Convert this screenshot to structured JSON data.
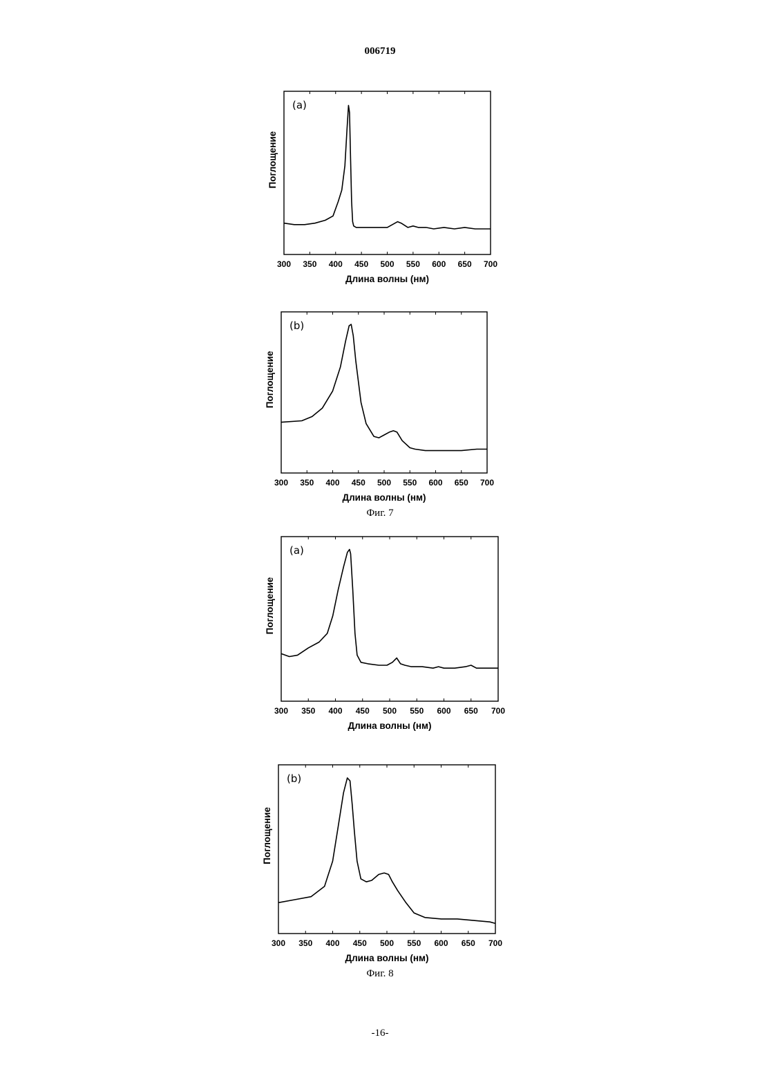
{
  "header": {
    "doc_number": "006719"
  },
  "footer": {
    "page_number": "-16-"
  },
  "figures": [
    {
      "caption": "Фиг. 7"
    },
    {
      "caption": "Фиг. 8"
    }
  ],
  "chart_data": [
    {
      "type": "line",
      "figure": "Фиг. 7",
      "panel_label": "(a)",
      "xlabel": "Длина волны (нм)",
      "ylabel": "Поглощение",
      "xlim": [
        300,
        700
      ],
      "ylim": [
        0,
        1
      ],
      "xticks": [
        "300",
        "350",
        "400",
        "450",
        "500",
        "550",
        "600",
        "650",
        "700"
      ],
      "y_ticks_shown": false,
      "grid": false,
      "series": [
        {
          "x": [
            300,
            320,
            340,
            360,
            380,
            395,
            405,
            412,
            418,
            422,
            425,
            427,
            429,
            431,
            433,
            435,
            440,
            450,
            470,
            500,
            515,
            520,
            527,
            540,
            550,
            560,
            575,
            590,
            610,
            630,
            650,
            670,
            700
          ],
          "y": [
            0.15,
            0.14,
            0.14,
            0.15,
            0.17,
            0.2,
            0.3,
            0.38,
            0.55,
            0.8,
            0.97,
            0.92,
            0.6,
            0.3,
            0.16,
            0.13,
            0.12,
            0.12,
            0.12,
            0.12,
            0.15,
            0.16,
            0.15,
            0.12,
            0.13,
            0.12,
            0.12,
            0.11,
            0.12,
            0.11,
            0.12,
            0.11,
            0.11
          ]
        }
      ]
    },
    {
      "type": "line",
      "figure": "Фиг. 7",
      "panel_label": "(b)",
      "xlabel": "Длина волны (нм)",
      "ylabel": "Поглощение",
      "xlim": [
        300,
        700
      ],
      "ylim": [
        0,
        1
      ],
      "xticks": [
        "300",
        "350",
        "400",
        "450",
        "500",
        "550",
        "600",
        "650",
        "700"
      ],
      "y_ticks_shown": false,
      "grid": false,
      "series": [
        {
          "x": [
            300,
            340,
            360,
            380,
            400,
            415,
            425,
            432,
            436,
            440,
            445,
            455,
            465,
            480,
            490,
            500,
            510,
            518,
            525,
            535,
            550,
            560,
            580,
            600,
            620,
            650,
            680,
            700
          ],
          "y": [
            0.29,
            0.3,
            0.33,
            0.39,
            0.51,
            0.68,
            0.86,
            0.97,
            0.98,
            0.9,
            0.72,
            0.43,
            0.28,
            0.19,
            0.18,
            0.2,
            0.22,
            0.23,
            0.22,
            0.16,
            0.11,
            0.1,
            0.09,
            0.09,
            0.09,
            0.09,
            0.1,
            0.1
          ]
        }
      ]
    },
    {
      "type": "line",
      "figure": "Фиг. 8",
      "panel_label": "(a)",
      "xlabel": "Длина волны (нм)",
      "ylabel": "Поглощение",
      "xlim": [
        300,
        700
      ],
      "ylim": [
        0,
        1
      ],
      "xticks": [
        "300",
        "350",
        "400",
        "450",
        "500",
        "550",
        "600",
        "650",
        "700"
      ],
      "y_ticks_shown": false,
      "grid": false,
      "series": [
        {
          "x": [
            300,
            315,
            330,
            350,
            370,
            385,
            395,
            405,
            415,
            422,
            426,
            428,
            432,
            436,
            440,
            447,
            460,
            480,
            495,
            505,
            513,
            520,
            528,
            540,
            560,
            580,
            590,
            600,
            620,
            640,
            650,
            660,
            680,
            700
          ],
          "y": [
            0.26,
            0.24,
            0.25,
            0.3,
            0.34,
            0.4,
            0.52,
            0.7,
            0.86,
            0.96,
            0.98,
            0.95,
            0.7,
            0.4,
            0.25,
            0.2,
            0.19,
            0.18,
            0.18,
            0.2,
            0.23,
            0.19,
            0.18,
            0.17,
            0.17,
            0.16,
            0.17,
            0.16,
            0.16,
            0.17,
            0.18,
            0.16,
            0.16,
            0.16
          ]
        }
      ]
    },
    {
      "type": "line",
      "figure": "Фиг. 8",
      "panel_label": "(b)",
      "xlabel": "Длина волны (нм)",
      "ylabel": "Поглощение",
      "xlim": [
        300,
        700
      ],
      "ylim": [
        0,
        1
      ],
      "xticks": [
        "300",
        "350",
        "400",
        "450",
        "500",
        "550",
        "600",
        "650",
        "700"
      ],
      "y_ticks_shown": false,
      "grid": false,
      "series": [
        {
          "x": [
            300,
            330,
            360,
            385,
            400,
            410,
            420,
            427,
            432,
            436,
            440,
            445,
            452,
            462,
            472,
            485,
            495,
            503,
            510,
            520,
            535,
            550,
            570,
            600,
            630,
            660,
            690,
            700
          ],
          "y": [
            0.14,
            0.16,
            0.18,
            0.25,
            0.42,
            0.65,
            0.88,
            0.98,
            0.96,
            0.8,
            0.62,
            0.42,
            0.3,
            0.28,
            0.29,
            0.33,
            0.34,
            0.33,
            0.28,
            0.22,
            0.14,
            0.07,
            0.04,
            0.03,
            0.03,
            0.02,
            0.01,
            0.0
          ]
        }
      ]
    }
  ]
}
